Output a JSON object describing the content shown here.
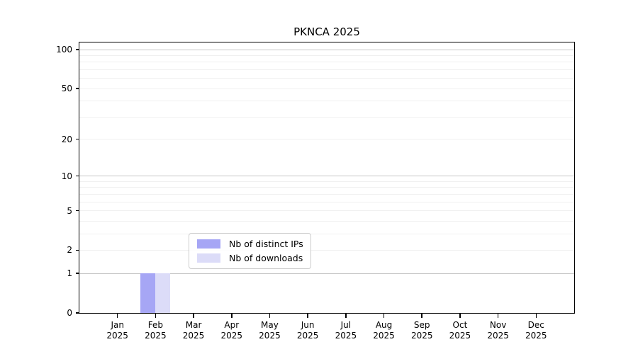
{
  "title": "PKNCA 2025",
  "chart_data": {
    "type": "bar",
    "title": "PKNCA 2025",
    "categories": [
      {
        "top": "Jan",
        "bottom": "2025"
      },
      {
        "top": "Feb",
        "bottom": "2025"
      },
      {
        "top": "Mar",
        "bottom": "2025"
      },
      {
        "top": "Apr",
        "bottom": "2025"
      },
      {
        "top": "May",
        "bottom": "2025"
      },
      {
        "top": "Jun",
        "bottom": "2025"
      },
      {
        "top": "Jul",
        "bottom": "2025"
      },
      {
        "top": "Aug",
        "bottom": "2025"
      },
      {
        "top": "Sep",
        "bottom": "2025"
      },
      {
        "top": "Oct",
        "bottom": "2025"
      },
      {
        "top": "Nov",
        "bottom": "2025"
      },
      {
        "top": "Dec",
        "bottom": "2025"
      }
    ],
    "series": [
      {
        "name": "Nb of distinct IPs",
        "color": "#a6a6f5",
        "values": [
          0,
          1,
          0,
          0,
          0,
          0,
          0,
          0,
          0,
          0,
          0,
          0
        ]
      },
      {
        "name": "Nb of downloads",
        "color": "#dcdcf8",
        "values": [
          0,
          1,
          0,
          0,
          0,
          0,
          0,
          0,
          0,
          0,
          0,
          0
        ]
      }
    ],
    "y_scale": "log1p",
    "ylim": [
      0,
      100
    ],
    "y_ticks": [
      {
        "value": 0,
        "label": "0"
      },
      {
        "value": 1,
        "label": "1"
      },
      {
        "value": 2,
        "label": "2"
      },
      {
        "value": 5,
        "label": "5"
      },
      {
        "value": 10,
        "label": "10"
      },
      {
        "value": 20,
        "label": "20"
      },
      {
        "value": 50,
        "label": "50"
      },
      {
        "value": 100,
        "label": "100"
      }
    ],
    "grid": {
      "major_at": [
        1,
        10,
        100
      ],
      "minor_at": [
        2,
        3,
        4,
        5,
        6,
        7,
        8,
        9,
        20,
        30,
        40,
        50,
        60,
        70,
        80,
        90
      ],
      "major_color": "#c6c6c6",
      "minor_color": "#f0f0f0"
    },
    "legend": {
      "position": "bottom-center-inside"
    },
    "colors": {
      "axis": "#000000",
      "background": "#ffffff"
    }
  }
}
